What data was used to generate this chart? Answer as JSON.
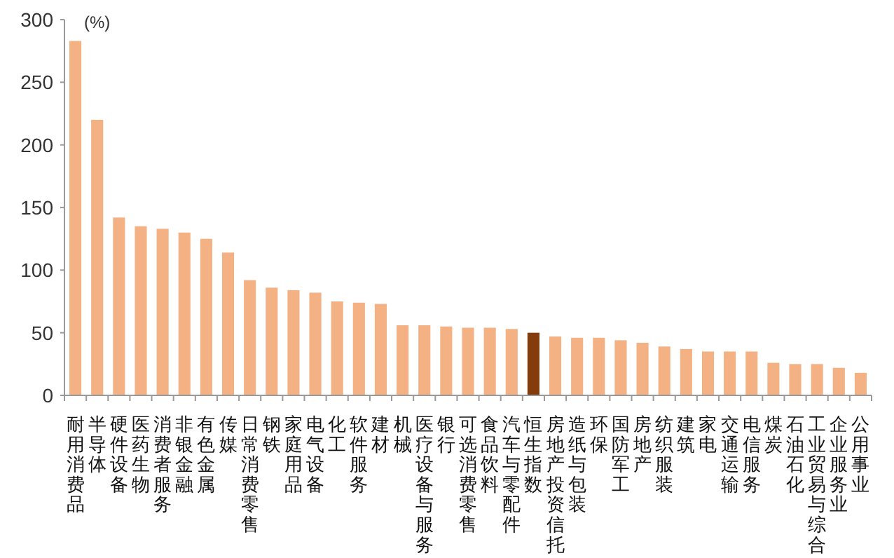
{
  "chart_data": {
    "type": "bar",
    "ylabel": "(%)",
    "categories": [
      "耐用消费品",
      "半导体",
      "硬件设备",
      "医药生物",
      "消费者服务",
      "非银金融",
      "有色金属",
      "传媒",
      "日常消费零售",
      "钢铁",
      "家庭用品",
      "电气设备",
      "化工",
      "软件服务",
      "建材",
      "机械",
      "医疗设备与服务",
      "银行",
      "可选消费零售",
      "食品饮料",
      "汽车与零配件",
      "恒生指数",
      "房地产投资信托",
      "造纸与包装",
      "环保",
      "国防军工",
      "房地产",
      "纺织服装",
      "建筑",
      "家电",
      "交通运输",
      "电信服务",
      "煤炭",
      "石油石化",
      "工业贸易与综合",
      "企业服务业",
      "公用事业"
    ],
    "values": [
      283,
      220,
      142,
      135,
      133,
      130,
      125,
      114,
      92,
      86,
      84,
      82,
      75,
      74,
      73,
      56,
      56,
      55,
      54,
      54,
      53,
      50,
      47,
      46,
      46,
      44,
      42,
      39,
      37,
      35,
      35,
      35,
      26,
      25,
      25,
      22,
      18
    ],
    "colors": [
      "#f4b183",
      "#f4b183",
      "#f4b183",
      "#f4b183",
      "#f4b183",
      "#f4b183",
      "#f4b183",
      "#f4b183",
      "#f4b183",
      "#f4b183",
      "#f4b183",
      "#f4b183",
      "#f4b183",
      "#f4b183",
      "#f4b183",
      "#f4b183",
      "#f4b183",
      "#f4b183",
      "#f4b183",
      "#f4b183",
      "#f4b183",
      "#843c0c",
      "#f4b183",
      "#f4b183",
      "#f4b183",
      "#f4b183",
      "#f4b183",
      "#f4b183",
      "#f4b183",
      "#f4b183",
      "#f4b183",
      "#f4b183",
      "#f4b183",
      "#f4b183",
      "#f4b183",
      "#f4b183",
      "#f4b183"
    ],
    "ylim": [
      0,
      300
    ],
    "yticks": [
      0,
      50,
      100,
      150,
      200,
      250,
      300
    ],
    "grid": false
  }
}
